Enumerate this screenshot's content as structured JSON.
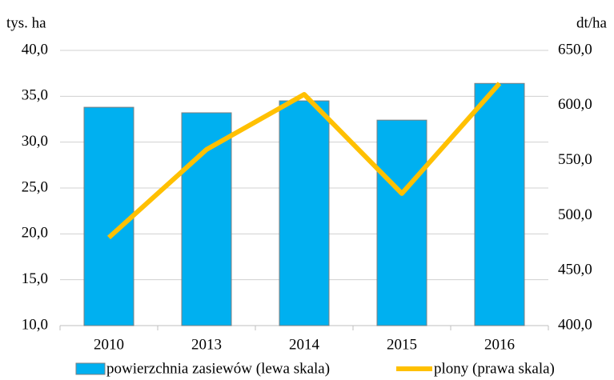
{
  "chart_data": {
    "type": "bar_line",
    "y_label": "tys. ha",
    "y2_label": "dt/ha",
    "categories": [
      "2010",
      "2013",
      "2014",
      "2015",
      "2016"
    ],
    "series": [
      {
        "name": "powierzchnia zasiewów (lewa skala)",
        "color": "#00b0f0",
        "type": "bar",
        "values": [
          33.8,
          33.2,
          34.5,
          32.4,
          36.4
        ]
      },
      {
        "name": "plony (prawa skala)",
        "color": "#ffc000",
        "type": "line",
        "axis": "y2",
        "values": [
          480,
          560,
          610,
          520,
          620
        ]
      }
    ],
    "ylim": [
      10,
      40
    ],
    "yticks": [
      {
        "value": 10,
        "label": "10,0"
      },
      {
        "value": 15,
        "label": "15,0"
      },
      {
        "value": 20,
        "label": "20,0"
      },
      {
        "value": 25,
        "label": "25,0"
      },
      {
        "value": 30,
        "label": "30,0"
      },
      {
        "value": 35,
        "label": "35,0"
      },
      {
        "value": 40,
        "label": "40,0"
      }
    ],
    "y2lim": [
      400,
      650
    ],
    "y2ticks": [
      {
        "value": 400,
        "label": "400,0"
      },
      {
        "value": 450,
        "label": "450,0"
      },
      {
        "value": 500,
        "label": "500,0"
      },
      {
        "value": 550,
        "label": "550,0"
      },
      {
        "value": 600,
        "label": "600,0"
      },
      {
        "value": 650,
        "label": "650,0"
      }
    ],
    "grid": true,
    "legend": "bottom"
  }
}
